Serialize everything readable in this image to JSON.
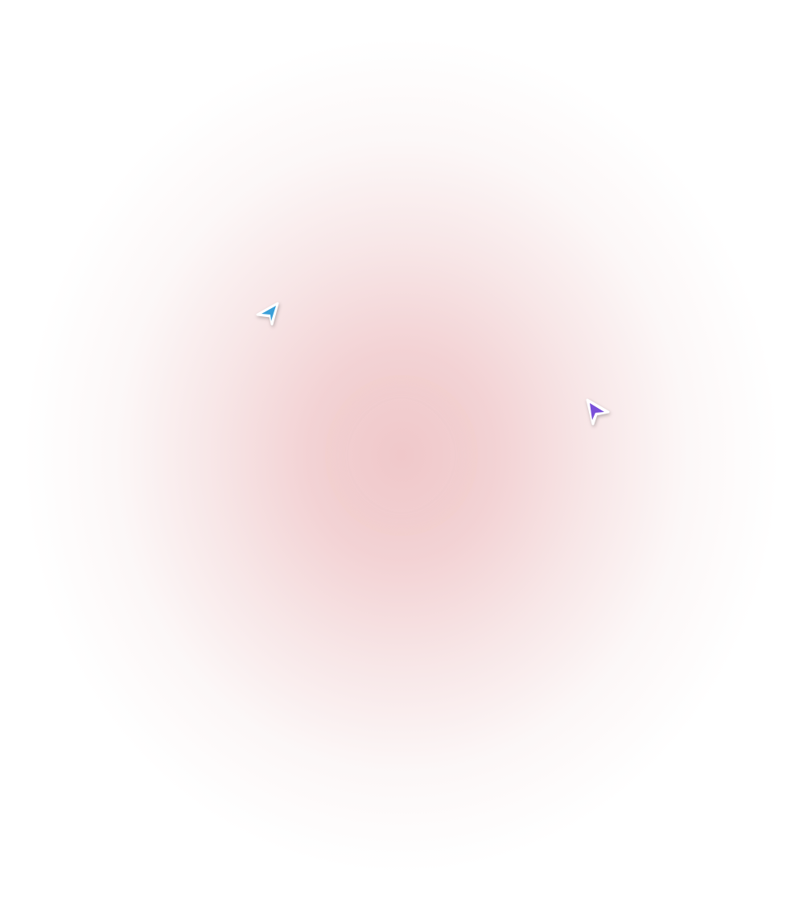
{
  "background": {
    "center_color": "#f0c8ca",
    "edge_color": "#ffffff"
  },
  "cursors": [
    {
      "name": "blue-cursor",
      "color": "#3a9fd8",
      "direction": "up-right"
    },
    {
      "name": "purple-cursor",
      "color": "#7a4fd8",
      "direction": "up-left"
    }
  ]
}
